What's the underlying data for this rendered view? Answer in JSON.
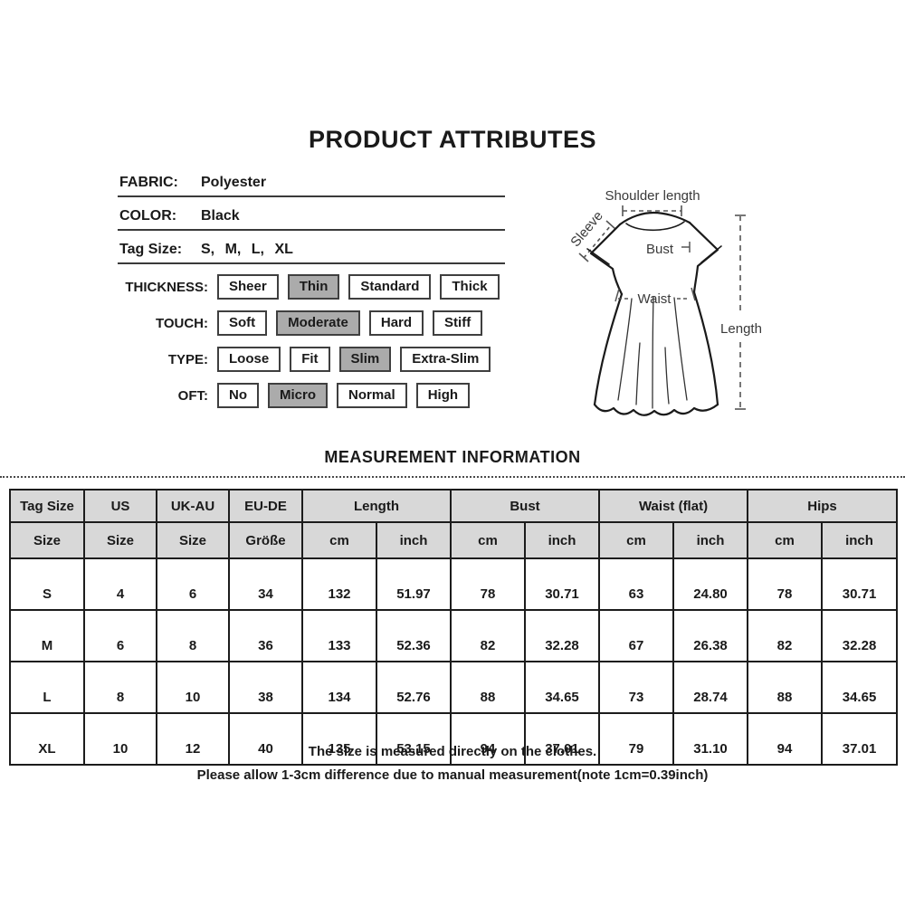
{
  "title": "PRODUCT ATTRIBUTES",
  "attributes": {
    "fabric_label": "FABRIC:",
    "fabric_value": "Polyester",
    "color_label": "COLOR:",
    "color_value": "Black",
    "tag_size_label": "Tag Size:",
    "tag_size_value": "S, M, L, XL",
    "choice_rows": [
      {
        "label": "THICKNESS:",
        "options": [
          "Sheer",
          "Thin",
          "Standard",
          "Thick"
        ],
        "selected": "Thin"
      },
      {
        "label": "TOUCH:",
        "options": [
          "Soft",
          "Moderate",
          "Hard",
          "Stiff"
        ],
        "selected": "Moderate"
      },
      {
        "label": "TYPE:",
        "options": [
          "Loose",
          "Fit",
          "Slim",
          "Extra-Slim"
        ],
        "selected": "Slim"
      },
      {
        "label": "OFT:",
        "options": [
          "No",
          "Micro",
          "Normal",
          "High"
        ],
        "selected": "Micro"
      }
    ]
  },
  "diagram": {
    "labels": {
      "shoulder": "Shoulder length",
      "sleeve": "Sleeve",
      "bust": "Bust",
      "waist": "Waist",
      "length": "Length"
    }
  },
  "measurement": {
    "heading": "MEASUREMENT INFORMATION",
    "table": {
      "group_headers": [
        {
          "label": "Tag Size",
          "span": 1
        },
        {
          "label": "US",
          "span": 1
        },
        {
          "label": "UK-AU",
          "span": 1
        },
        {
          "label": "EU-DE",
          "span": 1
        },
        {
          "label": "Length",
          "span": 2
        },
        {
          "label": "Bust",
          "span": 2
        },
        {
          "label": "Waist (flat)",
          "span": 2
        },
        {
          "label": "Hips",
          "span": 2
        }
      ],
      "sub_headers": [
        "Size",
        "Size",
        "Size",
        "Größe",
        "cm",
        "inch",
        "cm",
        "inch",
        "cm",
        "inch",
        "cm",
        "inch"
      ],
      "rows": [
        [
          "S",
          "4",
          "6",
          "34",
          "132",
          "51.97",
          "78",
          "30.71",
          "63",
          "24.80",
          "78",
          "30.71"
        ],
        [
          "M",
          "6",
          "8",
          "36",
          "133",
          "52.36",
          "82",
          "32.28",
          "67",
          "26.38",
          "82",
          "32.28"
        ],
        [
          "L",
          "8",
          "10",
          "38",
          "134",
          "52.76",
          "88",
          "34.65",
          "73",
          "28.74",
          "88",
          "34.65"
        ],
        [
          "XL",
          "10",
          "12",
          "40",
          "135",
          "53.15",
          "94",
          "37.01",
          "79",
          "31.10",
          "94",
          "37.01"
        ]
      ]
    },
    "notes": [
      "The size is measured directly on the clothes.",
      "Please allow 1-3cm difference due to manual measurement(note 1cm=0.39inch)"
    ]
  },
  "colors": {
    "highlight_gray": "#ababab",
    "table_header_gray": "#d8d8d8",
    "text": "#1a1a1a",
    "diagram_text": "#3a3a3a"
  }
}
